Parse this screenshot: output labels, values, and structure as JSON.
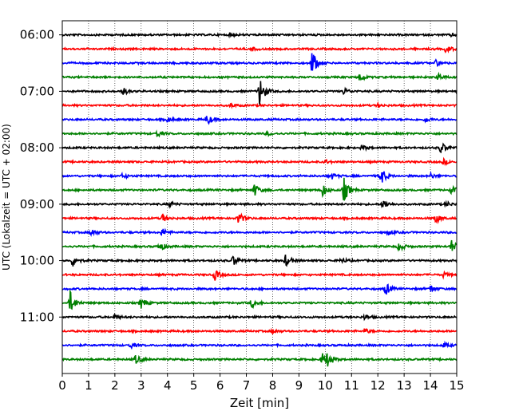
{
  "chart_data": {
    "type": "line",
    "title": "",
    "xlabel": "Zeit  [min]",
    "ylabel": "UTC (Lokalzeit = UTC + 02:00)",
    "xlim": [
      0,
      15
    ],
    "x_ticks": [
      0,
      1,
      2,
      3,
      4,
      5,
      6,
      7,
      8,
      9,
      10,
      11,
      12,
      13,
      14,
      15
    ],
    "x_tick_labels": [
      "0",
      "1",
      "2",
      "3",
      "4",
      "5",
      "6",
      "7",
      "8",
      "9",
      "10",
      "11",
      "12",
      "13",
      "14",
      "15"
    ],
    "grid": "vertical dotted",
    "ylim_minutes": [
      -15,
      360
    ],
    "y_ticks_minutes": [
      0,
      60,
      120,
      180,
      240,
      300
    ],
    "y_tick_labels": [
      "06:00",
      "07:00",
      "08:00",
      "09:00",
      "10:00",
      "11:00"
    ],
    "trace_colors": [
      "#000000",
      "#ff0000",
      "#0000ff",
      "#008000"
    ],
    "trace_interval_min": 15,
    "series": [
      {
        "offset_min": 0,
        "color_index": 0,
        "events": [
          [
            6.4,
            0.12
          ],
          [
            14.8,
            0.12
          ]
        ]
      },
      {
        "offset_min": 15,
        "color_index": 1,
        "events": [
          [
            7.2,
            0.15
          ],
          [
            14.6,
            0.3
          ]
        ]
      },
      {
        "offset_min": 30,
        "color_index": 2,
        "events": [
          [
            9.5,
            1.0
          ],
          [
            14.2,
            0.25
          ]
        ]
      },
      {
        "offset_min": 45,
        "color_index": 3,
        "events": [
          [
            11.3,
            0.35
          ],
          [
            14.3,
            0.25
          ]
        ]
      },
      {
        "offset_min": 60,
        "color_index": 0,
        "events": [
          [
            2.3,
            0.3
          ],
          [
            7.5,
            1.2
          ],
          [
            10.7,
            0.25
          ]
        ]
      },
      {
        "offset_min": 75,
        "color_index": 1,
        "events": [
          [
            6.4,
            0.15
          ],
          [
            12.0,
            0.12
          ]
        ]
      },
      {
        "offset_min": 90,
        "color_index": 2,
        "events": [
          [
            4.0,
            0.2
          ],
          [
            5.5,
            0.45
          ],
          [
            13.8,
            0.2
          ]
        ]
      },
      {
        "offset_min": 105,
        "color_index": 3,
        "events": [
          [
            3.6,
            0.25
          ],
          [
            7.8,
            0.15
          ]
        ]
      },
      {
        "offset_min": 120,
        "color_index": 0,
        "events": [
          [
            11.4,
            0.2
          ],
          [
            14.4,
            0.45
          ]
        ]
      },
      {
        "offset_min": 135,
        "color_index": 1,
        "events": [
          [
            10.0,
            0.15
          ],
          [
            14.5,
            0.2
          ]
        ]
      },
      {
        "offset_min": 150,
        "color_index": 2,
        "events": [
          [
            2.3,
            0.2
          ],
          [
            10.2,
            0.3
          ],
          [
            12.1,
            0.8
          ],
          [
            14.0,
            0.2
          ]
        ]
      },
      {
        "offset_min": 165,
        "color_index": 3,
        "events": [
          [
            7.3,
            0.5
          ],
          [
            9.9,
            0.5
          ],
          [
            10.7,
            1.0
          ],
          [
            14.8,
            0.3
          ]
        ]
      },
      {
        "offset_min": 180,
        "color_index": 0,
        "events": [
          [
            4.1,
            0.2
          ],
          [
            12.2,
            0.4
          ],
          [
            14.6,
            0.2
          ]
        ]
      },
      {
        "offset_min": 195,
        "color_index": 1,
        "events": [
          [
            3.8,
            0.3
          ],
          [
            6.7,
            0.5
          ],
          [
            14.2,
            0.4
          ]
        ]
      },
      {
        "offset_min": 210,
        "color_index": 2,
        "events": [
          [
            1.1,
            0.3
          ],
          [
            3.8,
            0.3
          ],
          [
            12.4,
            0.2
          ]
        ]
      },
      {
        "offset_min": 225,
        "color_index": 3,
        "events": [
          [
            3.7,
            0.4
          ],
          [
            12.8,
            0.4
          ],
          [
            14.8,
            0.5
          ]
        ]
      },
      {
        "offset_min": 240,
        "color_index": 0,
        "events": [
          [
            0.4,
            0.5
          ],
          [
            6.5,
            0.4
          ],
          [
            8.5,
            0.5
          ],
          [
            10.6,
            0.2
          ]
        ]
      },
      {
        "offset_min": 255,
        "color_index": 1,
        "events": [
          [
            5.8,
            0.4
          ],
          [
            14.5,
            0.2
          ]
        ]
      },
      {
        "offset_min": 270,
        "color_index": 2,
        "events": [
          [
            12.3,
            0.5
          ],
          [
            14.0,
            0.3
          ]
        ]
      },
      {
        "offset_min": 285,
        "color_index": 3,
        "events": [
          [
            0.3,
            0.9
          ],
          [
            3.0,
            0.4
          ],
          [
            7.2,
            0.35
          ]
        ]
      },
      {
        "offset_min": 300,
        "color_index": 0,
        "events": [
          [
            2.0,
            0.2
          ],
          [
            11.5,
            0.2
          ]
        ]
      },
      {
        "offset_min": 315,
        "color_index": 1,
        "events": [
          [
            8.0,
            0.15
          ],
          [
            11.5,
            0.2
          ]
        ]
      },
      {
        "offset_min": 330,
        "color_index": 2,
        "events": [
          [
            2.6,
            0.2
          ],
          [
            14.5,
            0.2
          ]
        ]
      },
      {
        "offset_min": 345,
        "color_index": 3,
        "events": [
          [
            2.8,
            0.35
          ],
          [
            9.9,
            0.5
          ],
          [
            10.1,
            0.5
          ]
        ]
      }
    ]
  }
}
